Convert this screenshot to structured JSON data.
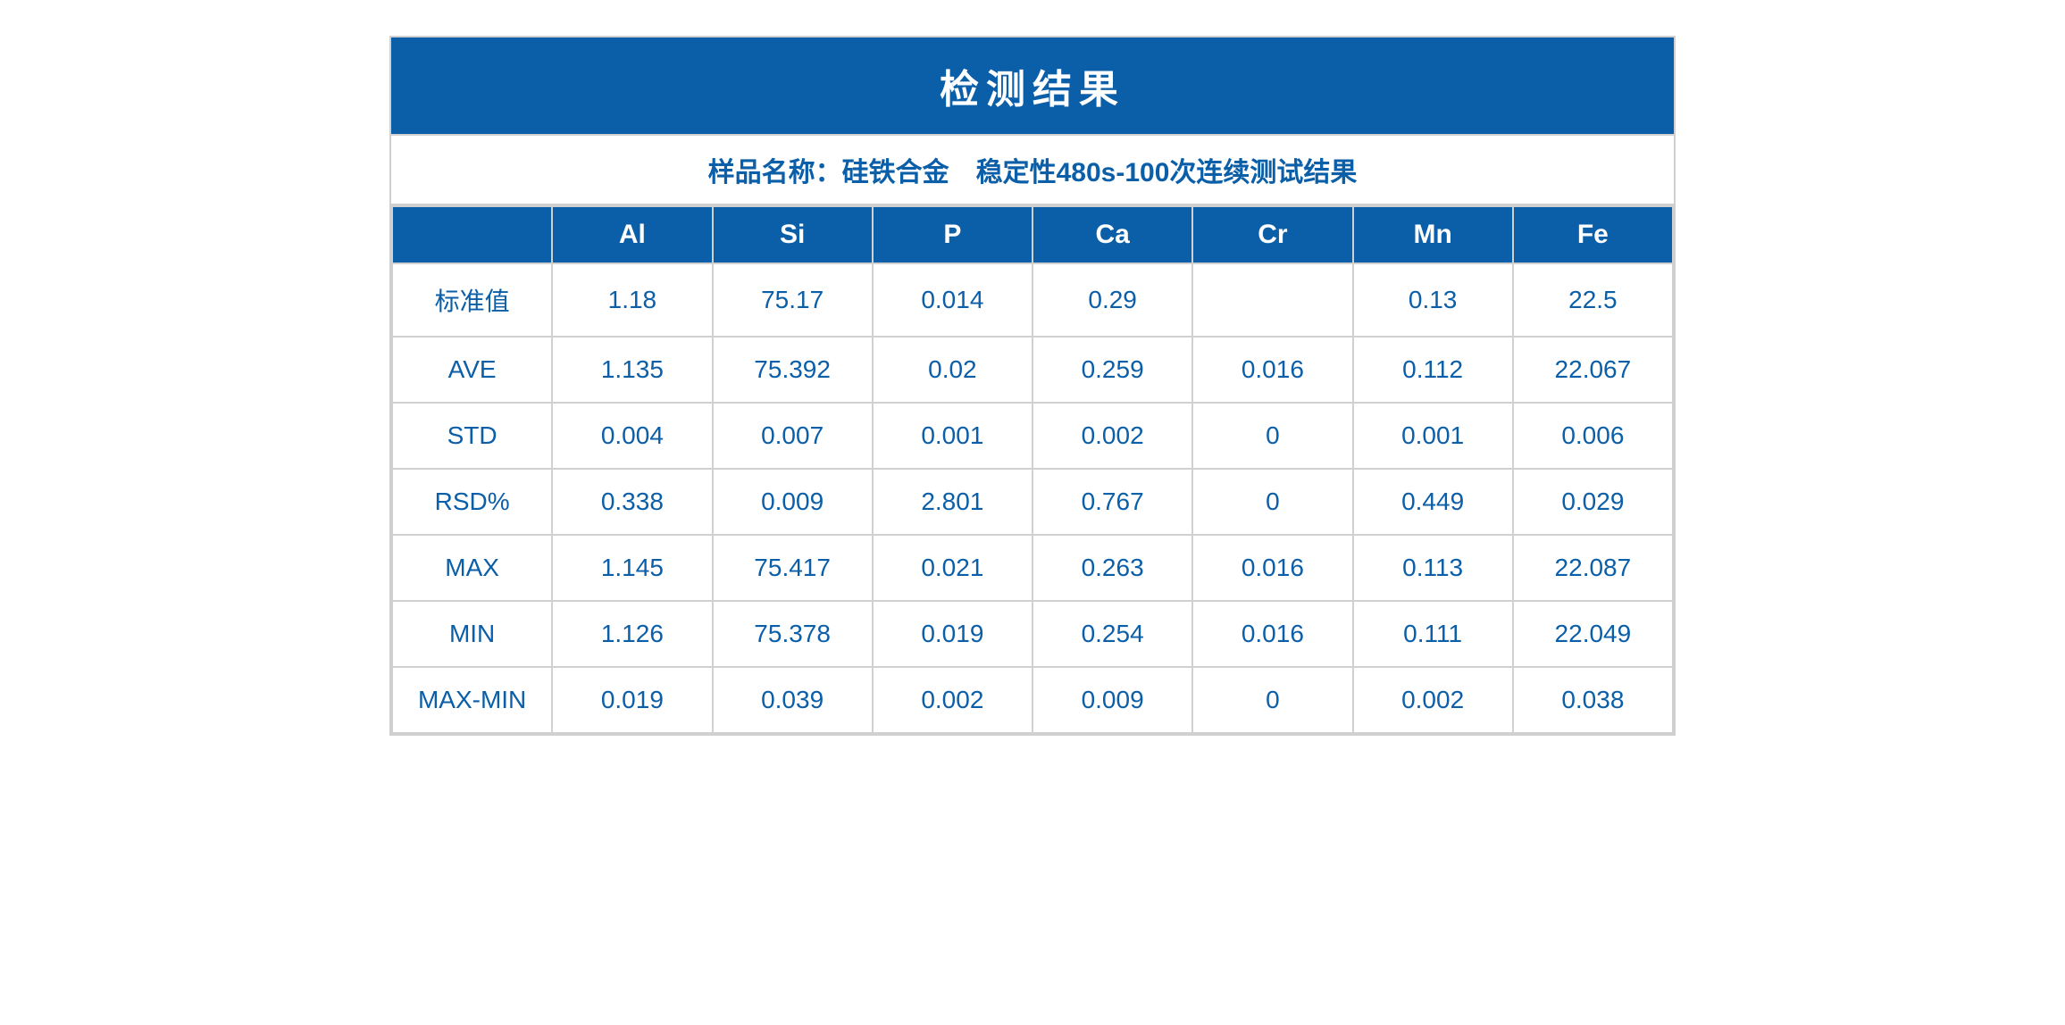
{
  "table": {
    "type": "table",
    "title": "检测结果",
    "subtitle": "样品名称：硅铁合金　稳定性480s-100次连续测试结果",
    "title_bg_color": "#0b5ea8",
    "title_text_color": "#ffffff",
    "header_bg_color": "#0b5ea8",
    "header_text_color": "#ffffff",
    "cell_bg_color": "#ffffff",
    "cell_text_color": "#0b5ea8",
    "border_color": "#d0d0d0",
    "title_fontsize": 44,
    "subtitle_fontsize": 30,
    "header_fontsize": 30,
    "cell_fontsize": 28,
    "columns": [
      "",
      "Al",
      "Si",
      "P",
      "Ca",
      "Cr",
      "Mn",
      "Fe"
    ],
    "rows": [
      {
        "label": "标准值",
        "values": [
          "1.18",
          "75.17",
          "0.014",
          "0.29",
          "",
          "0.13",
          "22.5"
        ]
      },
      {
        "label": "AVE",
        "values": [
          "1.135",
          "75.392",
          "0.02",
          "0.259",
          "0.016",
          "0.112",
          "22.067"
        ]
      },
      {
        "label": "STD",
        "values": [
          "0.004",
          "0.007",
          "0.001",
          "0.002",
          "0",
          "0.001",
          "0.006"
        ]
      },
      {
        "label": "RSD%",
        "values": [
          "0.338",
          "0.009",
          "2.801",
          "0.767",
          "0",
          "0.449",
          "0.029"
        ]
      },
      {
        "label": "MAX",
        "values": [
          "1.145",
          "75.417",
          "0.021",
          "0.263",
          "0.016",
          "0.113",
          "22.087"
        ]
      },
      {
        "label": "MIN",
        "values": [
          "1.126",
          "75.378",
          "0.019",
          "0.254",
          "0.016",
          "0.111",
          "22.049"
        ]
      },
      {
        "label": "MAX-MIN",
        "values": [
          "0.019",
          "0.039",
          "0.002",
          "0.009",
          "0",
          "0.002",
          "0.038"
        ]
      }
    ]
  }
}
